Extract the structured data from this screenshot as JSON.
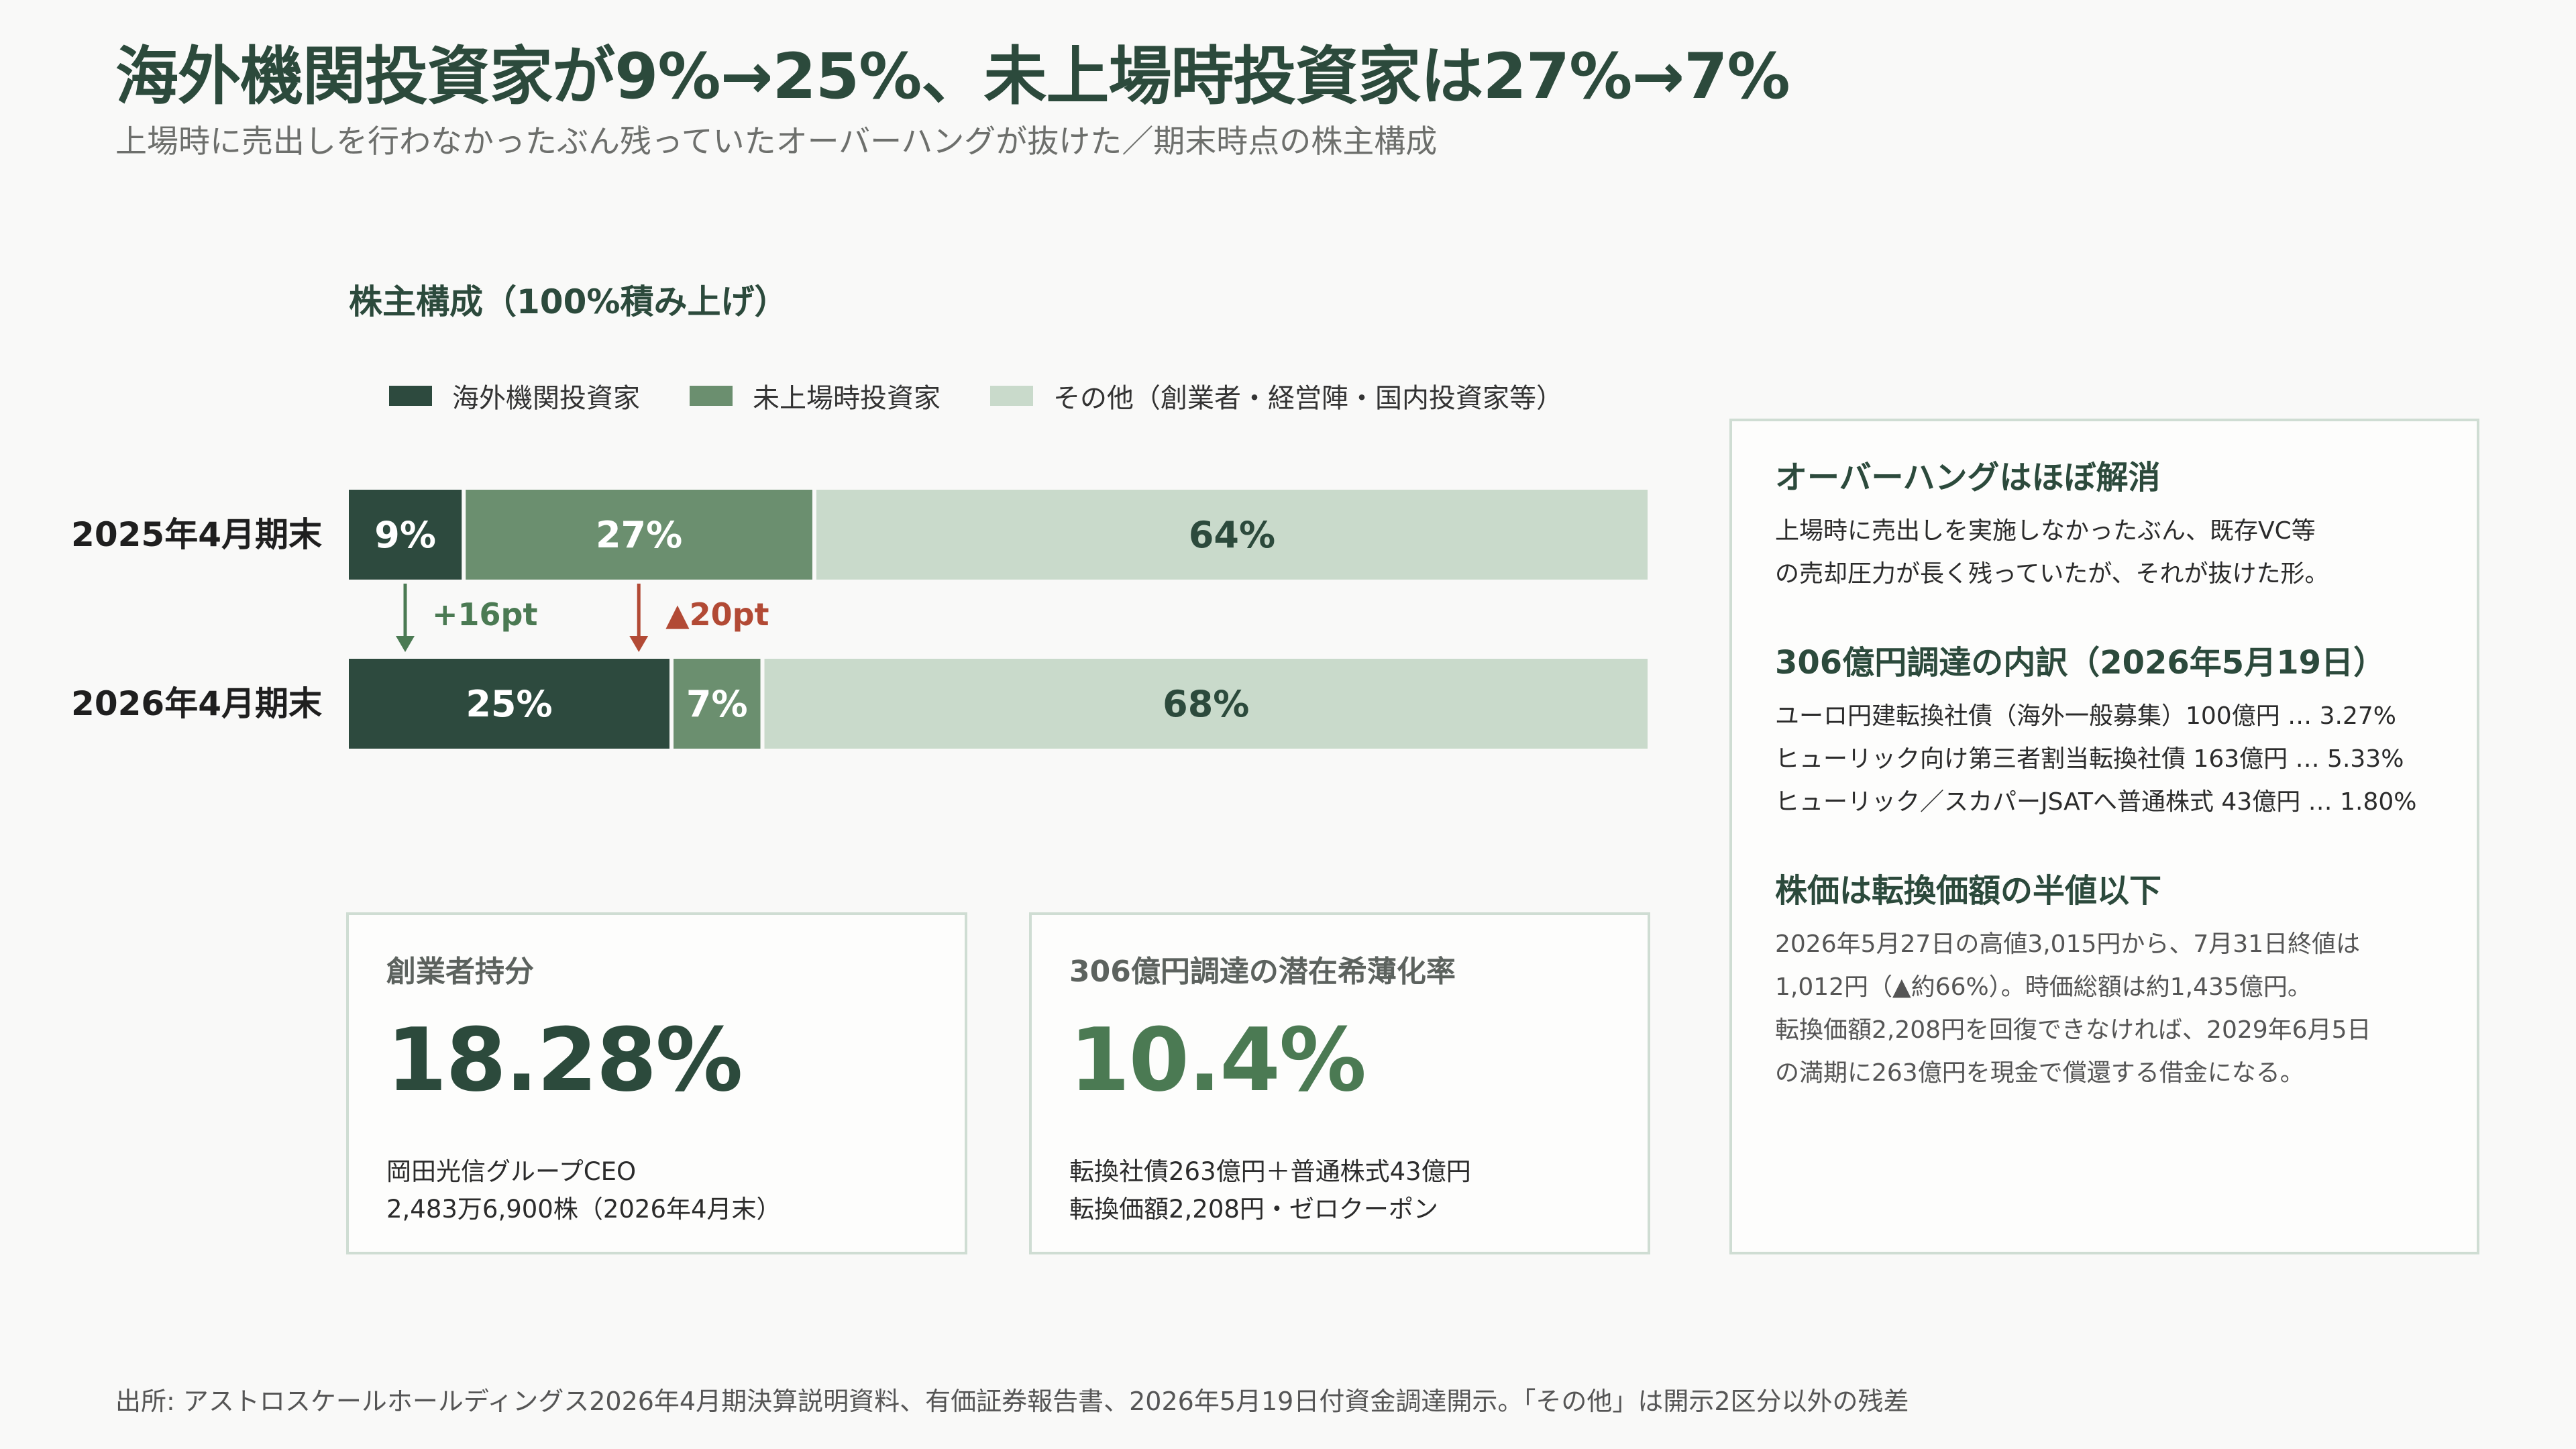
{
  "header": {
    "title": "海外機関投資家が9%→25%、未上場時投資家は27%→7%",
    "subtitle": "上場時に売出しを行わなかったぶん残っていたオーバーハングが抜けた／期末時点の株主構成"
  },
  "colors": {
    "foreign": "#2d4a3e",
    "preipo": "#6b8f6f",
    "other": "#c9dacb",
    "increase": "#4b7a53",
    "decrease": "#b24a35",
    "accent_green": "#4b7a53"
  },
  "chart_data": {
    "type": "bar",
    "orientation": "horizontal",
    "stacked": "100%",
    "title": "株主構成（100%積み上げ）",
    "legend_position": "top",
    "categories": [
      "2025年4月期末",
      "2026年4月期末"
    ],
    "series": [
      {
        "name": "海外機関投資家",
        "values": [
          9,
          25
        ],
        "labels": [
          "9%",
          "25%"
        ]
      },
      {
        "name": "未上場時投資家",
        "values": [
          27,
          7
        ],
        "labels": [
          "27%",
          "7%"
        ]
      },
      {
        "name": "その他（創業者・経営陣・国内投資家等）",
        "values": [
          64,
          68
        ],
        "labels": [
          "64%",
          "68%"
        ]
      }
    ],
    "changes": [
      {
        "series": "海外機関投資家",
        "label": "+16pt",
        "direction": "up"
      },
      {
        "series": "未上場時投資家",
        "label": "▲20pt",
        "direction": "down"
      }
    ]
  },
  "cards": {
    "founder": {
      "heading": "創業者持分",
      "value": "18.28%",
      "line1": "岡田光信グループCEO",
      "line2": "2,483万6,900株（2026年4月末）"
    },
    "dilution": {
      "heading": "306億円調達の潜在希薄化率",
      "value": "10.4%",
      "line1": "転換社債263億円＋普通株式43億円",
      "line2": "転換価額2,208円・ゼロクーポン"
    }
  },
  "side": {
    "section1": {
      "heading": "オーバーハングはほぼ解消",
      "line1": "上場時に売出しを実施しなかったぶん、既存VC等",
      "line2": "の売却圧力が長く残っていたが、それが抜けた形。"
    },
    "section2": {
      "heading": "306億円調達の内訳（2026年5月19日）",
      "line1": "ユーロ円建転換社債（海外一般募集）100億円 … 3.27%",
      "line2": "ヒューリック向け第三者割当転換社債 163億円 … 5.33%",
      "line3": "ヒューリック／スカパーJSATへ普通株式 43億円 … 1.80%"
    },
    "section3": {
      "heading": "株価は転換価額の半値以下",
      "line1": "2026年5月27日の高値3,015円から、7月31日終値は",
      "line2": "1,012円（▲約66%）。時価総額は約1,435億円。",
      "line3": "転換価額2,208円を回復できなければ、2029年6月5日",
      "line4": "の満期に263億円を現金で償還する借金になる。"
    }
  },
  "footer": {
    "source": "出所: アストロスケールホールディングス2026年4月期決算説明資料、有価証券報告書、2026年5月19日付資金調達開示。「その他」は開示2区分以外の残差"
  }
}
